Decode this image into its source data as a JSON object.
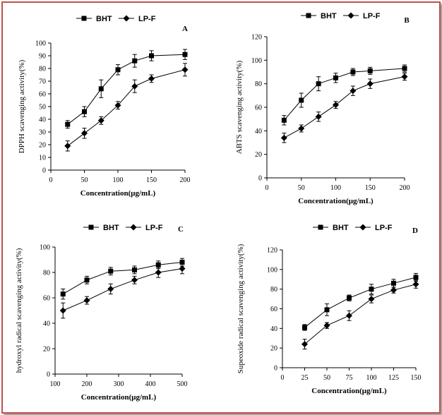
{
  "colors": {
    "frame": "#c0504d",
    "series": "#000000",
    "background": "#ffffff"
  },
  "chart_data": [
    {
      "type": "line",
      "panel_label": "A",
      "xlabel": "Concentration(μg/mL)",
      "ylabel": "DPPH scavenging activity(%)",
      "xlim": [
        0,
        200
      ],
      "ylim": [
        0,
        100
      ],
      "x_ticks": [
        0,
        50,
        100,
        150,
        200
      ],
      "y_ticks": [
        0,
        10,
        20,
        30,
        40,
        50,
        60,
        70,
        80,
        90,
        100
      ],
      "legend": "top",
      "series": [
        {
          "name": "BHT",
          "marker": "square",
          "x": [
            25,
            50,
            75,
            100,
            125,
            150,
            200
          ],
          "values": [
            36,
            46,
            64,
            79,
            86,
            90,
            91
          ],
          "errors": [
            3,
            4,
            7,
            4,
            5,
            4,
            4
          ]
        },
        {
          "name": "LP-F",
          "marker": "diamond",
          "x": [
            25,
            50,
            75,
            100,
            125,
            150,
            200
          ],
          "values": [
            19,
            29,
            39,
            51,
            66,
            72,
            79
          ],
          "errors": [
            4,
            4,
            3,
            3,
            5,
            3,
            5
          ]
        }
      ]
    },
    {
      "type": "line",
      "panel_label": "B",
      "xlabel": "Concentration(μg/mL)",
      "ylabel": "ABTS scavenging activity(%)",
      "xlim": [
        0,
        200
      ],
      "ylim": [
        0,
        120
      ],
      "x_ticks": [
        0,
        50,
        100,
        150,
        200
      ],
      "y_ticks": [
        0,
        20,
        40,
        60,
        80,
        100,
        120
      ],
      "legend": "top",
      "series": [
        {
          "name": "BHT",
          "marker": "square",
          "x": [
            25,
            50,
            75,
            100,
            125,
            150,
            200
          ],
          "values": [
            49,
            66,
            80,
            85,
            90,
            91,
            93
          ],
          "errors": [
            4,
            6,
            6,
            4,
            3,
            3,
            3
          ]
        },
        {
          "name": "LP-F",
          "marker": "diamond",
          "x": [
            25,
            50,
            75,
            100,
            125,
            150,
            200
          ],
          "values": [
            34,
            42,
            52,
            62,
            74,
            80,
            86
          ],
          "errors": [
            4,
            3,
            4,
            3,
            4,
            4,
            3
          ]
        }
      ]
    },
    {
      "type": "line",
      "panel_label": "C",
      "xlabel": "Concentration(μg/mL)",
      "ylabel": "hydroxyl radical scavenging activity(%)",
      "xlim": [
        100,
        500
      ],
      "ylim": [
        0,
        100
      ],
      "x_ticks": [
        100,
        200,
        300,
        400,
        500
      ],
      "y_ticks": [
        0,
        20,
        40,
        60,
        80,
        100
      ],
      "legend": "top",
      "series": [
        {
          "name": "BHT",
          "marker": "square",
          "x": [
            125,
            200,
            275,
            350,
            425,
            500
          ],
          "values": [
            63,
            74,
            81,
            82,
            86,
            88
          ],
          "errors": [
            4,
            3,
            3,
            3,
            3,
            3
          ]
        },
        {
          "name": "LP-F",
          "marker": "diamond",
          "x": [
            125,
            200,
            275,
            350,
            425,
            500
          ],
          "values": [
            50,
            58,
            67,
            74,
            80,
            83
          ],
          "errors": [
            6,
            3,
            4,
            3,
            4,
            4
          ]
        }
      ]
    },
    {
      "type": "line",
      "panel_label": "D",
      "xlabel": "Concentration(μg/mL)",
      "ylabel": "Supeoxide radical scavenging activity(%)",
      "xlim": [
        0,
        150
      ],
      "ylim": [
        0,
        120
      ],
      "x_ticks": [
        0,
        25,
        50,
        75,
        100,
        125,
        150
      ],
      "y_ticks": [
        0,
        20,
        40,
        60,
        80,
        100,
        120
      ],
      "legend": "top",
      "series": [
        {
          "name": "BHT",
          "marker": "square",
          "x": [
            25,
            50,
            75,
            100,
            125,
            150
          ],
          "values": [
            41,
            59,
            71,
            80,
            86,
            92
          ],
          "errors": [
            3,
            6,
            3,
            5,
            4,
            4
          ]
        },
        {
          "name": "LP-F",
          "marker": "diamond",
          "x": [
            25,
            50,
            75,
            100,
            125,
            150
          ],
          "values": [
            24,
            43,
            53,
            70,
            79,
            85
          ],
          "errors": [
            5,
            3,
            5,
            4,
            3,
            4
          ]
        }
      ]
    }
  ]
}
